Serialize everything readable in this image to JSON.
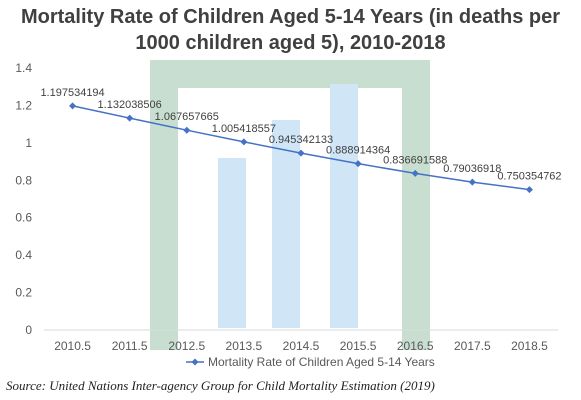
{
  "title_line1": "Mortality Rate of Children Aged 5-14 Years (in deaths per",
  "title_line2": "1000 children aged 5), 2010-2018",
  "source": "Source: United Nations Inter-agency Group for Child Mortality Estimation (2019)",
  "colors": {
    "series": "#4472c4",
    "axis": "#d9d9d9",
    "tick_text": "#595959",
    "label_text": "#404040",
    "watermark_green": "#3d8b5a",
    "watermark_blue": "#5aa8e0"
  },
  "chart_data": {
    "type": "line",
    "title": "Mortality Rate of Children Aged 5-14 Years (in deaths per 1000 children aged 5), 2010-2018",
    "categories": [
      "2010.5",
      "2011.5",
      "2012.5",
      "2013.5",
      "2014.5",
      "2015.5",
      "2016.5",
      "2017.5",
      "2018.5"
    ],
    "series": [
      {
        "name": "Mortality Rate of Children Aged 5-14 Years",
        "values": [
          1.197534194,
          1.132038506,
          1.067657665,
          1.005418557,
          0.945342133,
          0.888914364,
          0.836691588,
          0.79036918,
          0.750354762
        ],
        "labels": [
          "1.197534194",
          "1.132038506",
          "1.067657665",
          "1.005418557",
          "0.945342133",
          "0.888914364",
          "0.836691588",
          "0.79036918",
          "0.750354762"
        ]
      }
    ],
    "yticks": [
      "0",
      "0.2",
      "0.4",
      "0.6",
      "0.8",
      "1",
      "1.2",
      "1.4"
    ],
    "ylim": [
      0,
      1.4
    ],
    "grid": false,
    "legend_position": "bottom"
  }
}
